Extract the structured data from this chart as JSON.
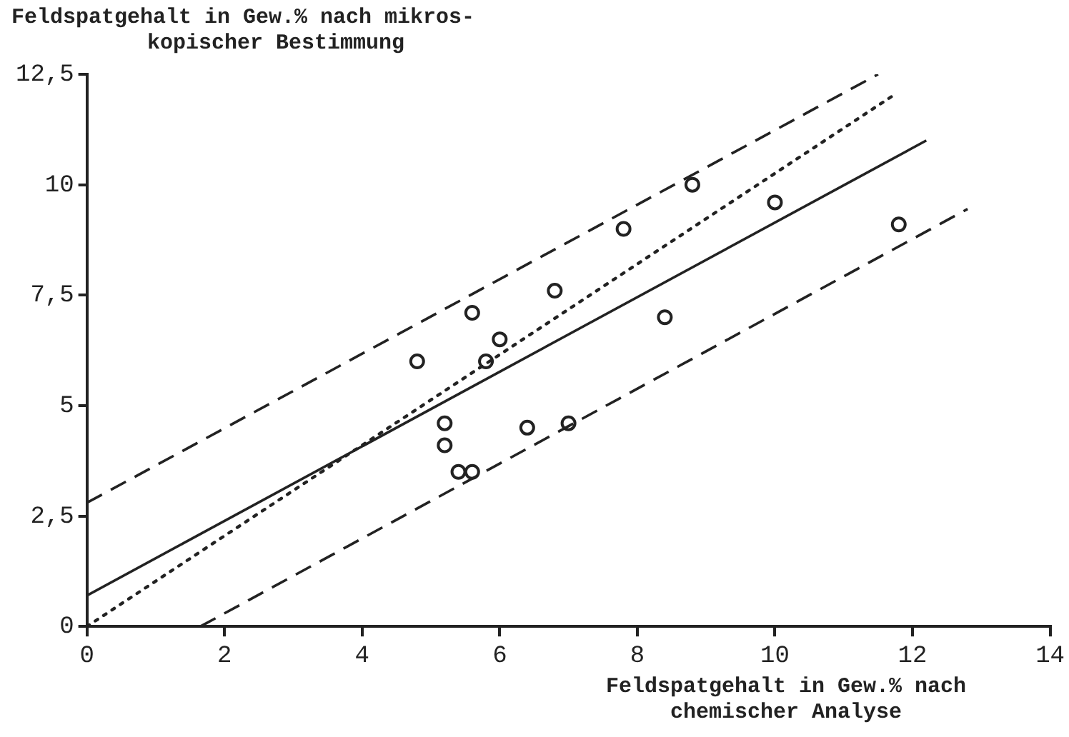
{
  "chart_data": {
    "type": "scatter",
    "ylabel": "Feldspatgehalt in Gew.% nach mikros-\nkopischer Bestimmung",
    "xlabel": "Feldspatgehalt in Gew.% nach\nchemischer Analyse",
    "xlim": [
      0,
      14
    ],
    "xticks": [
      0,
      2,
      4,
      6,
      8,
      10,
      12,
      14
    ],
    "ylim": [
      0,
      12.5
    ],
    "yticks": [
      {
        "value": 0,
        "label": "0"
      },
      {
        "value": 2.5,
        "label": "2,5"
      },
      {
        "value": 5,
        "label": "5"
      },
      {
        "value": 7.5,
        "label": "7,5"
      },
      {
        "value": 10,
        "label": "10"
      },
      {
        "value": 12.5,
        "label": "12,5"
      }
    ],
    "grid": false,
    "legend": false,
    "series": [
      {
        "marker": "circle",
        "color": "#222222",
        "x": [
          4.8,
          5.6,
          6.0,
          5.8,
          5.2,
          5.2,
          5.4,
          5.6,
          6.4,
          6.8,
          7.0,
          7.8,
          8.8,
          8.4,
          10.0,
          11.8
        ],
        "values": [
          6.0,
          7.1,
          6.5,
          6.0,
          4.6,
          4.1,
          3.5,
          3.5,
          4.5,
          7.6,
          4.6,
          9.0,
          10.0,
          7.0,
          9.6,
          9.1
        ]
      },
      {
        "type": "line",
        "marker": "none",
        "line_style": "solid",
        "color": "#222222",
        "x": [
          0,
          12.2
        ],
        "values": [
          0.7,
          11.0
        ]
      },
      {
        "type": "line",
        "marker": "none",
        "line_style": "dotted",
        "color": "#222222",
        "x": [
          0,
          11.7
        ],
        "values": [
          0,
          12.0
        ]
      },
      {
        "type": "line",
        "marker": "none",
        "line_style": "dashed",
        "color": "#222222",
        "x": [
          0,
          11.5
        ],
        "values": [
          2.8,
          12.5
        ]
      },
      {
        "type": "line",
        "marker": "none",
        "line_style": "dashed",
        "color": "#222222",
        "x": [
          1.65,
          12.8
        ],
        "values": [
          0,
          9.45
        ]
      }
    ]
  }
}
